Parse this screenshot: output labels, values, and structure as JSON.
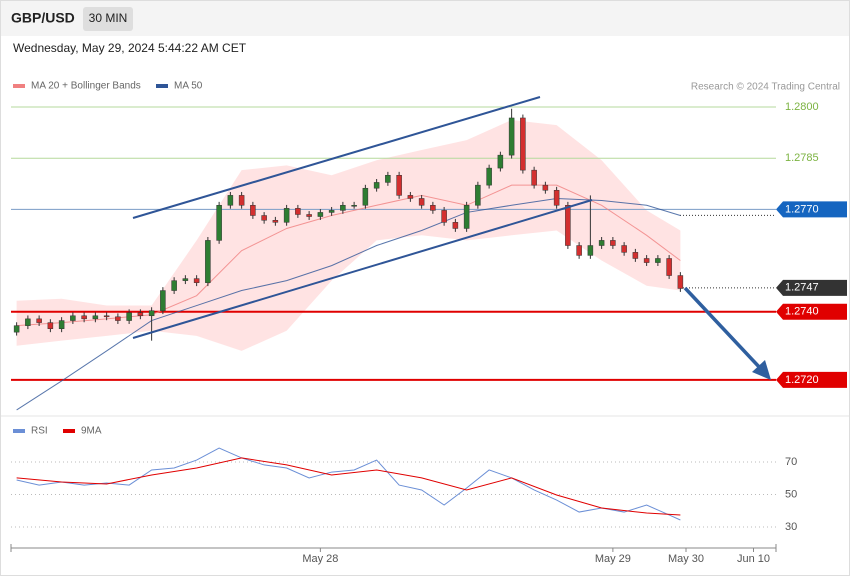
{
  "header": {
    "symbol": "GBP/USD",
    "timeframe": "30 MIN",
    "timestamp": "Wednesday, May 29, 2024 5:44:22 AM CET",
    "credit": "Research © 2024 Trading Central"
  },
  "chart_data": [
    {
      "type": "candlestick",
      "up_color": "#2e7d32",
      "down_color": "#d32f2f",
      "xlim": [
        -0.5,
        67.5
      ],
      "ylim": [
        1.2711,
        1.2804
      ],
      "open": [
        1.2734,
        1.27359,
        1.27379,
        1.27368,
        1.2735,
        1.27374,
        1.27388,
        1.27379,
        1.27388,
        1.27385,
        1.27374,
        1.27397,
        1.27388,
        1.27403,
        1.27462,
        1.27491,
        1.27497,
        1.27485,
        1.27609,
        1.27712,
        1.27741,
        1.27712,
        1.27682,
        1.27668,
        1.27662,
        1.27703,
        1.27685,
        1.27679,
        1.27691,
        1.27697,
        1.27712,
        1.27712,
        1.27762,
        1.27779,
        1.278,
        1.27741,
        1.27732,
        1.27712,
        1.27697,
        1.27662,
        1.27644,
        1.27712,
        1.27771,
        1.27821,
        1.27859,
        1.27968,
        1.27815,
        1.27771,
        1.27756,
        1.27712,
        1.27594,
        1.27565,
        1.27594,
        1.27609,
        1.27594,
        1.27574,
        1.27556,
        1.27544,
        1.27556,
        1.27506
      ],
      "high": [
        1.27369,
        1.27389,
        1.27389,
        1.27378,
        1.27384,
        1.27398,
        1.27398,
        1.27398,
        1.27398,
        1.27395,
        1.27407,
        1.27407,
        1.27413,
        1.27472,
        1.27501,
        1.27507,
        1.27507,
        1.27619,
        1.27722,
        1.27751,
        1.27751,
        1.27722,
        1.27692,
        1.27678,
        1.27713,
        1.27713,
        1.27695,
        1.27701,
        1.27707,
        1.27722,
        1.27722,
        1.27772,
        1.27789,
        1.2781,
        1.2781,
        1.27751,
        1.27742,
        1.27722,
        1.27707,
        1.27672,
        1.27722,
        1.27781,
        1.27831,
        1.27869,
        1.27995,
        1.27978,
        1.27825,
        1.27781,
        1.27766,
        1.27722,
        1.27604,
        1.27741,
        1.27619,
        1.27619,
        1.27604,
        1.27584,
        1.27566,
        1.27566,
        1.27566,
        1.27516
      ],
      "low": [
        1.2733,
        1.27349,
        1.27358,
        1.2734,
        1.2734,
        1.27364,
        1.27369,
        1.27369,
        1.27375,
        1.27364,
        1.27364,
        1.27378,
        1.27315,
        1.27393,
        1.27452,
        1.27481,
        1.27475,
        1.27475,
        1.27599,
        1.27702,
        1.27702,
        1.27672,
        1.27658,
        1.27652,
        1.27652,
        1.27675,
        1.27669,
        1.27669,
        1.27681,
        1.27687,
        1.27702,
        1.27702,
        1.27752,
        1.27769,
        1.27731,
        1.27722,
        1.27702,
        1.27687,
        1.27652,
        1.27634,
        1.27634,
        1.27702,
        1.27761,
        1.27811,
        1.27849,
        1.27805,
        1.27761,
        1.27746,
        1.27702,
        1.27584,
        1.27555,
        1.27555,
        1.27584,
        1.27584,
        1.27564,
        1.27546,
        1.27534,
        1.27534,
        1.27496,
        1.27458
      ],
      "close": [
        1.27359,
        1.27379,
        1.27368,
        1.2735,
        1.27374,
        1.27388,
        1.27379,
        1.27388,
        1.27385,
        1.27374,
        1.27397,
        1.27388,
        1.27403,
        1.27462,
        1.27491,
        1.27497,
        1.27485,
        1.27609,
        1.27712,
        1.27741,
        1.27712,
        1.27682,
        1.27668,
        1.27662,
        1.27703,
        1.27685,
        1.27679,
        1.27691,
        1.27697,
        1.27712,
        1.27712,
        1.27762,
        1.27779,
        1.278,
        1.27741,
        1.27732,
        1.27712,
        1.27697,
        1.27662,
        1.27644,
        1.27712,
        1.27771,
        1.27821,
        1.27859,
        1.27968,
        1.27815,
        1.27771,
        1.27756,
        1.27712,
        1.27594,
        1.27565,
        1.27594,
        1.27609,
        1.27594,
        1.27574,
        1.27556,
        1.27544,
        1.27556,
        1.27506,
        1.27468
      ],
      "overlays": {
        "x": [
          0,
          4,
          8,
          12,
          16,
          20,
          24,
          28,
          32,
          36,
          40,
          44,
          48,
          52,
          56,
          59
        ],
        "series": [
          {
            "name": "MA 20 + Bollinger Bands",
            "color": "#f08080",
            "band_color": "#ffd9d9",
            "values": [
              1.27359,
              1.27368,
              1.27379,
              1.27391,
              1.27447,
              1.27579,
              1.27644,
              1.27682,
              1.27712,
              1.27741,
              1.27712,
              1.27771,
              1.27771,
              1.27712,
              1.27624,
              1.2755
            ],
            "upper": [
              1.27432,
              1.27438,
              1.27418,
              1.27418,
              1.27609,
              1.27815,
              1.27829,
              1.278,
              1.27844,
              1.27874,
              1.27903,
              1.27962,
              1.27947,
              1.27844,
              1.27697,
              1.27638
            ],
            "lower": [
              1.273,
              1.27315,
              1.27329,
              1.27344,
              1.27329,
              1.27285,
              1.27344,
              1.27491,
              1.27609,
              1.27624,
              1.27609,
              1.27624,
              1.27638,
              1.2755,
              1.27476,
              1.27462
            ]
          },
          {
            "name": "MA 50",
            "color": "#2f5597",
            "values": [
              1.27112,
              1.27197,
              1.27285,
              1.27374,
              1.27418,
              1.27462,
              1.27491,
              1.27535,
              1.27594,
              1.27638,
              1.27691,
              1.27712,
              1.27732,
              1.27726,
              1.27712,
              1.27682
            ]
          }
        ]
      },
      "levels": [
        {
          "value": 1.28,
          "label": "1.2800",
          "color": "#7cb342",
          "boxed": false,
          "style": "solid"
        },
        {
          "value": 1.2785,
          "label": "1.2785",
          "color": "#7cb342",
          "boxed": false,
          "style": "solid"
        },
        {
          "value": 1.277,
          "label": "1.2770",
          "color": "#1565c0",
          "boxed": true,
          "style": "solid"
        },
        {
          "value": 1.2747,
          "label": "1.2747",
          "color": "#333333",
          "boxed": true,
          "style": "dotted"
        },
        {
          "value": 1.274,
          "label": "1.2740",
          "color": "#e00000",
          "boxed": true,
          "style": "solid"
        },
        {
          "value": 1.272,
          "label": "1.2720",
          "color": "#e00000",
          "boxed": true,
          "style": "solid"
        }
      ]
    },
    {
      "type": "line",
      "xlim": [
        -0.5,
        67.5
      ],
      "ylim": [
        20,
        84
      ],
      "yticks": [
        30,
        50,
        70
      ],
      "xticks": [
        {
          "value": 27,
          "label": "May 28"
        },
        {
          "value": 53,
          "label": "May 29"
        },
        {
          "value": 59.5,
          "label": "May 30"
        },
        {
          "value": 65.5,
          "label": "Jun 10"
        }
      ],
      "series": [
        {
          "name": "RSI",
          "color": "#6b8fd6",
          "x": [
            0,
            2,
            4,
            6,
            8,
            10,
            12,
            14,
            16,
            18,
            20,
            22,
            24,
            26,
            28,
            30,
            32,
            34,
            36,
            38,
            40,
            42,
            44,
            46,
            48,
            50,
            52,
            54,
            56,
            58,
            59
          ],
          "values": [
            58.9,
            55.8,
            57.7,
            55.8,
            57.1,
            55.8,
            65.1,
            66.3,
            71.2,
            78.6,
            72.5,
            68.2,
            66.3,
            60.2,
            63.8,
            65.1,
            71.2,
            55.8,
            52.8,
            43.5,
            54.0,
            65.1,
            60.2,
            52.8,
            46.6,
            39.2,
            41.7,
            39.2,
            43.5,
            37.4,
            34.3
          ]
        },
        {
          "name": "9MA",
          "color": "#e00000",
          "x": [
            0,
            4,
            8,
            12,
            16,
            20,
            24,
            28,
            32,
            36,
            40,
            44,
            48,
            52,
            56,
            59
          ],
          "values": [
            60.2,
            57.7,
            56.5,
            62.0,
            66.3,
            72.5,
            68.2,
            62.0,
            65.1,
            60.2,
            52.8,
            60.2,
            49.7,
            41.7,
            38.6,
            37.4
          ]
        }
      ]
    }
  ]
}
